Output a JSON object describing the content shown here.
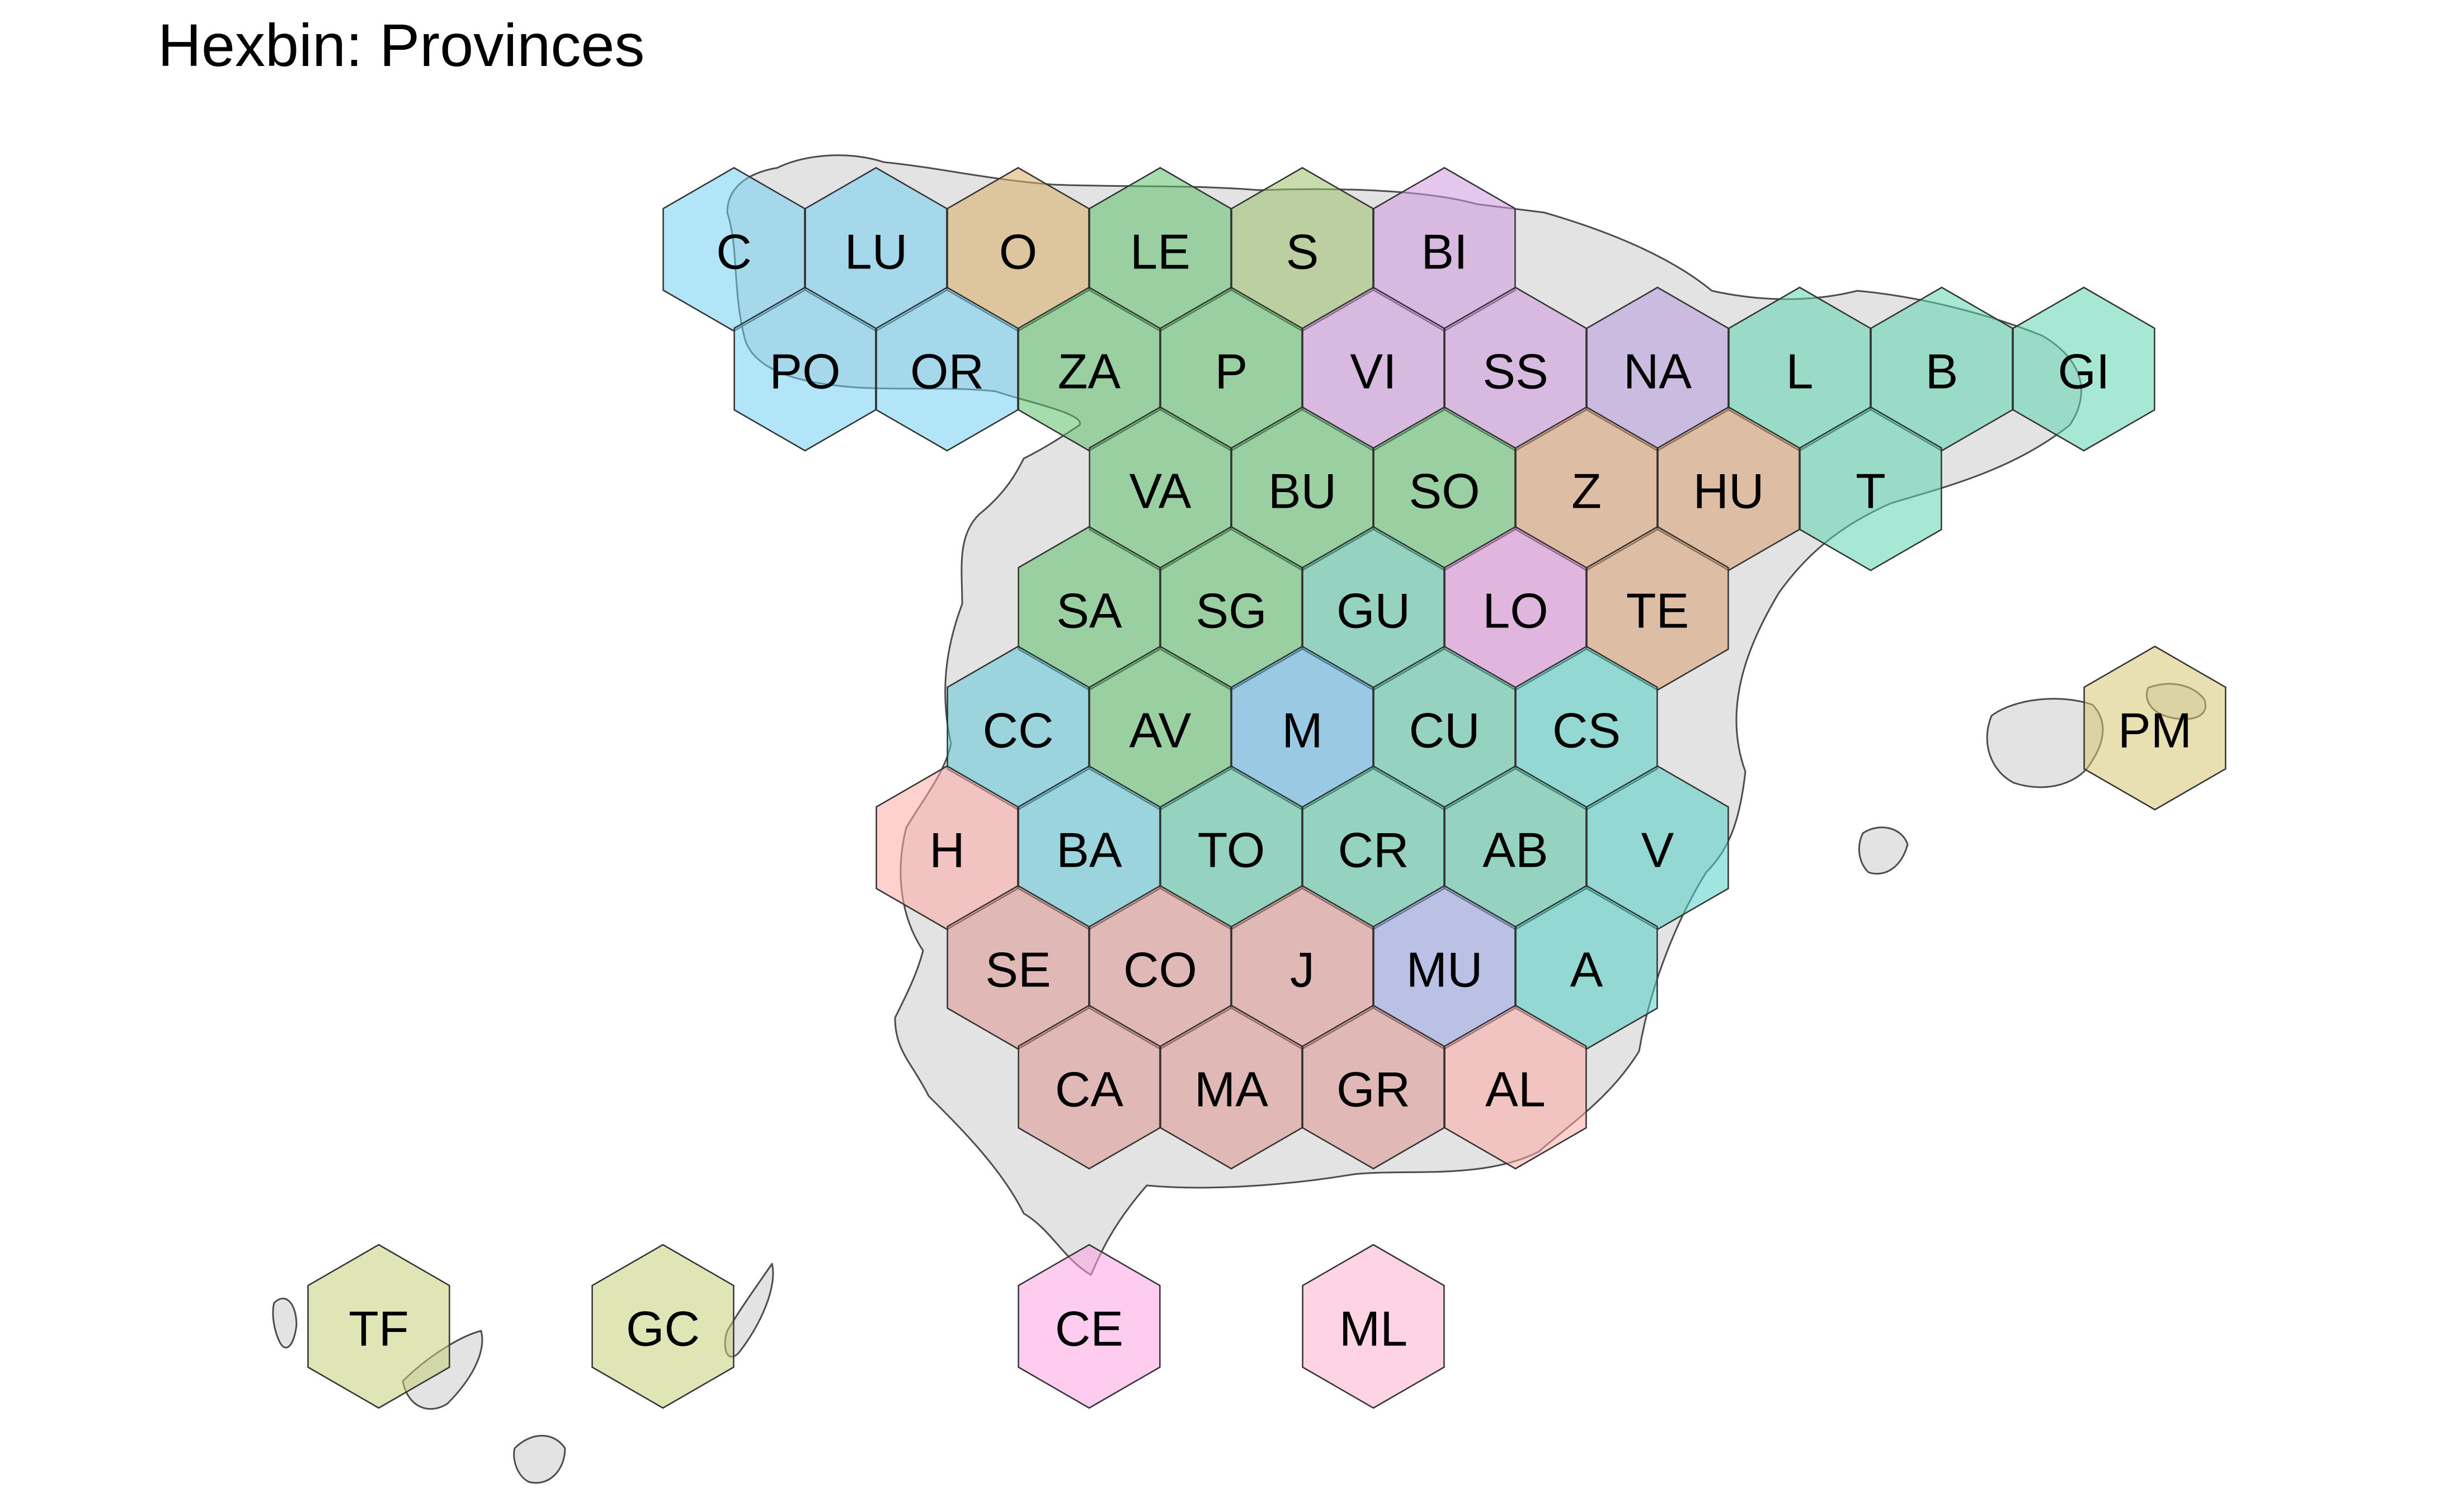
{
  "title": "Hexbin: Provinces",
  "regions": {
    "galicia": "#74cff2",
    "asturias": "#d8ae66",
    "cyl": "#5ec06e",
    "cantabria": "#9cc06a",
    "pv": "#cf99e0",
    "navarra": "#b99ade",
    "cat": "#5dd6b0",
    "aragon": "#d9a073",
    "rioja": "#df90da",
    "madrid": "#5cb5e3",
    "castillaLM": "#55c6a4",
    "extremadura": "#60c8d9",
    "valencia": "#54d0c8",
    "murcia": "#9aa6e8",
    "andalucia": "#df9590",
    "andaluciaLight": "#fdaca8",
    "baleares": "#d7c771",
    "canarias": "#c7cf7a",
    "ceuta": "#fca3e2",
    "melilla": "#fdaecd"
  },
  "provinces": [
    {
      "code": "C",
      "col": 0,
      "row": 0,
      "region": "galicia"
    },
    {
      "code": "LU",
      "col": 1,
      "row": 0,
      "region": "galicia"
    },
    {
      "code": "O",
      "col": 2,
      "row": 0,
      "region": "asturias"
    },
    {
      "code": "LE",
      "col": 3,
      "row": 0,
      "region": "cyl"
    },
    {
      "code": "S",
      "col": 4,
      "row": 0,
      "region": "cantabria"
    },
    {
      "code": "BI",
      "col": 5,
      "row": 0,
      "region": "pv"
    },
    {
      "code": "PO",
      "col": 0.5,
      "row": 1,
      "region": "galicia"
    },
    {
      "code": "OR",
      "col": 1.5,
      "row": 1,
      "region": "galicia"
    },
    {
      "code": "ZA",
      "col": 2.5,
      "row": 1,
      "region": "cyl"
    },
    {
      "code": "P",
      "col": 3.5,
      "row": 1,
      "region": "cyl"
    },
    {
      "code": "VI",
      "col": 4.5,
      "row": 1,
      "region": "pv"
    },
    {
      "code": "SS",
      "col": 5.5,
      "row": 1,
      "region": "pv"
    },
    {
      "code": "NA",
      "col": 6.5,
      "row": 1,
      "region": "navarra"
    },
    {
      "code": "L",
      "col": 7.5,
      "row": 1,
      "region": "cat"
    },
    {
      "code": "B",
      "col": 8.5,
      "row": 1,
      "region": "cat"
    },
    {
      "code": "GI",
      "col": 9.5,
      "row": 1,
      "region": "cat"
    },
    {
      "code": "VA",
      "col": 3,
      "row": 2,
      "region": "cyl"
    },
    {
      "code": "BU",
      "col": 4,
      "row": 2,
      "region": "cyl"
    },
    {
      "code": "SO",
      "col": 5,
      "row": 2,
      "region": "cyl"
    },
    {
      "code": "Z",
      "col": 6,
      "row": 2,
      "region": "aragon"
    },
    {
      "code": "HU",
      "col": 7,
      "row": 2,
      "region": "aragon"
    },
    {
      "code": "T",
      "col": 8,
      "row": 2,
      "region": "cat"
    },
    {
      "code": "SA",
      "col": 2.5,
      "row": 3,
      "region": "cyl"
    },
    {
      "code": "SG",
      "col": 3.5,
      "row": 3,
      "region": "cyl"
    },
    {
      "code": "GU",
      "col": 4.5,
      "row": 3,
      "region": "castillaLM"
    },
    {
      "code": "LO",
      "col": 5.5,
      "row": 3,
      "region": "rioja"
    },
    {
      "code": "TE",
      "col": 6.5,
      "row": 3,
      "region": "aragon"
    },
    {
      "code": "CC",
      "col": 2,
      "row": 4,
      "region": "extremadura"
    },
    {
      "code": "AV",
      "col": 3,
      "row": 4,
      "region": "cyl"
    },
    {
      "code": "M",
      "col": 4,
      "row": 4,
      "region": "madrid"
    },
    {
      "code": "CU",
      "col": 5,
      "row": 4,
      "region": "castillaLM"
    },
    {
      "code": "CS",
      "col": 6,
      "row": 4,
      "region": "valencia"
    },
    {
      "code": "PM",
      "col": 10,
      "row": 4,
      "region": "baleares"
    },
    {
      "code": "H",
      "col": 1.5,
      "row": 5,
      "region": "andaluciaLight"
    },
    {
      "code": "BA",
      "col": 2.5,
      "row": 5,
      "region": "extremadura"
    },
    {
      "code": "TO",
      "col": 3.5,
      "row": 5,
      "region": "castillaLM"
    },
    {
      "code": "CR",
      "col": 4.5,
      "row": 5,
      "region": "castillaLM"
    },
    {
      "code": "AB",
      "col": 5.5,
      "row": 5,
      "region": "castillaLM"
    },
    {
      "code": "V",
      "col": 6.5,
      "row": 5,
      "region": "valencia"
    },
    {
      "code": "SE",
      "col": 2,
      "row": 6,
      "region": "andalucia"
    },
    {
      "code": "CO",
      "col": 3,
      "row": 6,
      "region": "andalucia"
    },
    {
      "code": "J",
      "col": 4,
      "row": 6,
      "region": "andalucia"
    },
    {
      "code": "MU",
      "col": 5,
      "row": 6,
      "region": "murcia"
    },
    {
      "code": "A",
      "col": 6,
      "row": 6,
      "region": "valencia"
    },
    {
      "code": "CA",
      "col": 2.5,
      "row": 7,
      "region": "andalucia"
    },
    {
      "code": "MA",
      "col": 3.5,
      "row": 7,
      "region": "andalucia"
    },
    {
      "code": "GR",
      "col": 4.5,
      "row": 7,
      "region": "andalucia"
    },
    {
      "code": "AL",
      "col": 5.5,
      "row": 7,
      "region": "andaluciaLight"
    },
    {
      "code": "TF",
      "col": -2.5,
      "row": 9,
      "region": "canarias"
    },
    {
      "code": "GC",
      "col": -0.5,
      "row": 9,
      "region": "canarias"
    },
    {
      "code": "CE",
      "col": 2.5,
      "row": 9,
      "region": "ceuta"
    },
    {
      "code": "ML",
      "col": 4.5,
      "row": 9,
      "region": "melilla"
    }
  ]
}
